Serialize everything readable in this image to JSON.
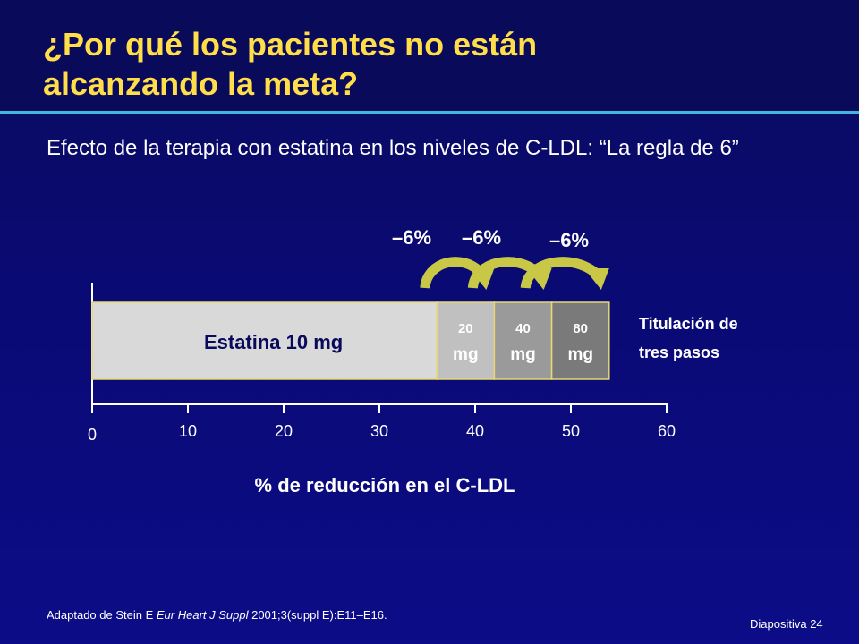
{
  "slide": {
    "title_line1": "¿Por qué los pacientes no están",
    "title_line2": "alcanzando la meta?",
    "subtitle": "Efecto de la terapia con estatina en los niveles de C-LDL: “La regla de 6”",
    "footnote_prefix": "Adaptado de Stein E ",
    "footnote_journal": "Eur Heart J Suppl",
    "footnote_suffix": " 2001;3(suppl E):E11–E16.",
    "slide_number": "Diapositiva 24"
  },
  "colors": {
    "title": "#ffde4a",
    "rule": "#3fb6df",
    "base_bar": "#d9d9d9",
    "step1": "#c0c0c0",
    "step2": "#9a9a9a",
    "step3": "#7a7a7a",
    "bar_border": "#e8d870",
    "arrow": "#c8c846",
    "text": "#ffffff"
  },
  "chart_data": {
    "type": "bar",
    "orientation": "horizontal-stacked",
    "xlabel": "% de reducción en el C-LDL",
    "xlim": [
      0,
      60
    ],
    "xticks": [
      0,
      10,
      20,
      30,
      40,
      50,
      60
    ],
    "segments": [
      {
        "label": "Estatina 10 mg",
        "start": 0,
        "end": 36,
        "color_key": "base_bar"
      },
      {
        "label": "20 mg",
        "start": 36,
        "end": 42,
        "color_key": "step1"
      },
      {
        "label": "40 mg",
        "start": 42,
        "end": 48,
        "color_key": "step2"
      },
      {
        "label": "80 mg",
        "start": 48,
        "end": 54,
        "color_key": "step3"
      }
    ],
    "step_annotations": [
      "–6%",
      "–6%",
      "–6%"
    ],
    "side_label_line1": "Titulación de",
    "side_label_line2": "tres pasos"
  }
}
